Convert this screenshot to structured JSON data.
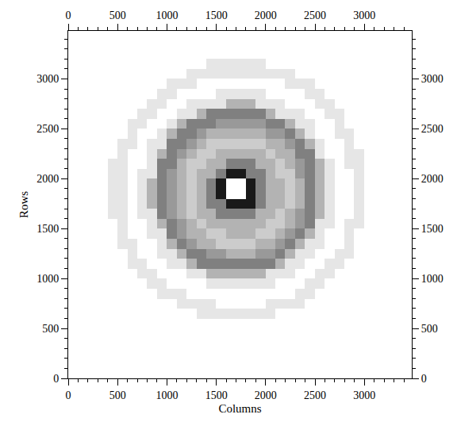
{
  "chart_data": {
    "type": "heatmap",
    "x_label": "Columns",
    "y_label": "Rows",
    "xlim": [
      0,
      3480
    ],
    "ylim": [
      0,
      3480
    ],
    "xticks": [
      0,
      500,
      1000,
      1500,
      2000,
      2500,
      3000
    ],
    "yticks": [
      0,
      500,
      1000,
      1500,
      2000,
      2500,
      3000
    ],
    "color": "#000000",
    "zlim": [
      0,
      10
    ],
    "x": [
      50,
      150,
      250,
      350,
      450,
      550,
      650,
      750,
      850,
      950,
      1050,
      1150,
      1250,
      1350,
      1450,
      1550,
      1650,
      1750,
      1850,
      1950,
      2050,
      2150,
      2250,
      2350,
      2450,
      2550,
      2650,
      2750,
      2850,
      2950,
      3050,
      3150,
      3250,
      3350,
      3450
    ],
    "y": [
      50,
      150,
      250,
      350,
      450,
      550,
      650,
      750,
      850,
      950,
      1050,
      1150,
      1250,
      1350,
      1450,
      1550,
      1650,
      1750,
      1850,
      1950,
      2050,
      2150,
      2250,
      2350,
      2450,
      2550,
      2650,
      2750,
      2850,
      2950,
      3050,
      3150,
      3250,
      3350,
      3450
    ],
    "z": [
      [
        0,
        0,
        0,
        0,
        0,
        0,
        0,
        0,
        0,
        0,
        0,
        0,
        0,
        0,
        0,
        0,
        0,
        0,
        0,
        0,
        0,
        0,
        0,
        0,
        0,
        0,
        0,
        0,
        0,
        0,
        0,
        0,
        0,
        0,
        0
      ],
      [
        0,
        0,
        0,
        0,
        0,
        0,
        0,
        0,
        0,
        0,
        0,
        0,
        0,
        0,
        0,
        0,
        0,
        0,
        0,
        0,
        0,
        0,
        0,
        0,
        0,
        0,
        0,
        0,
        0,
        0,
        0,
        0,
        0,
        0,
        0
      ],
      [
        0,
        0,
        0,
        0,
        0,
        0,
        0,
        0,
        0,
        0,
        0,
        0,
        0,
        0,
        0,
        0,
        0,
        0,
        0,
        0,
        0,
        0,
        0,
        0,
        0,
        0,
        0,
        0,
        0,
        0,
        0,
        0,
        0,
        0,
        0
      ],
      [
        0,
        0,
        0,
        0,
        0,
        0,
        0,
        0,
        0,
        0,
        0,
        0,
        0,
        0,
        0,
        0,
        0,
        0,
        0,
        0,
        0,
        0,
        0,
        0,
        0,
        0,
        0,
        0,
        0,
        0,
        0,
        0,
        0,
        0,
        0
      ],
      [
        0,
        0,
        0,
        0,
        0,
        0,
        0,
        0,
        0,
        0,
        0,
        0,
        0,
        0,
        0,
        0,
        0,
        0,
        0,
        0,
        0,
        0,
        0,
        0,
        0,
        0,
        0,
        0,
        0,
        0,
        0,
        0,
        0,
        0,
        0
      ],
      [
        0,
        0,
        0,
        0,
        0,
        0,
        0,
        0,
        0,
        0,
        0,
        0,
        0,
        0,
        0,
        0,
        0,
        0,
        0,
        0,
        0,
        0,
        0,
        0,
        0,
        0,
        0,
        0,
        0,
        0,
        0,
        0,
        0,
        0,
        0
      ],
      [
        0,
        0,
        0,
        0,
        0,
        0,
        0,
        0,
        0,
        0,
        0,
        0,
        0,
        1,
        1,
        1,
        1,
        1,
        1,
        1,
        1,
        0,
        0,
        0,
        0,
        0,
        0,
        0,
        0,
        0,
        0,
        0,
        0,
        0,
        0
      ],
      [
        0,
        0,
        0,
        0,
        0,
        0,
        0,
        0,
        0,
        0,
        0,
        1,
        1,
        1,
        1,
        0,
        0,
        0,
        0,
        0,
        1,
        1,
        1,
        1,
        0,
        0,
        0,
        0,
        0,
        0,
        0,
        0,
        0,
        0,
        0
      ],
      [
        0,
        0,
        0,
        0,
        0,
        0,
        0,
        0,
        0,
        1,
        1,
        1,
        0,
        0,
        0,
        0,
        0,
        0,
        0,
        0,
        0,
        0,
        0,
        1,
        1,
        0,
        0,
        0,
        0,
        0,
        0,
        0,
        0,
        0,
        0
      ],
      [
        0,
        0,
        0,
        0,
        0,
        0,
        0,
        0,
        1,
        1,
        0,
        0,
        0,
        0,
        1,
        1,
        1,
        1,
        1,
        1,
        1,
        0,
        0,
        0,
        1,
        1,
        0,
        0,
        0,
        0,
        0,
        0,
        0,
        0,
        0
      ],
      [
        0,
        0,
        0,
        0,
        0,
        0,
        0,
        1,
        1,
        0,
        0,
        0,
        1,
        1,
        3,
        3,
        3,
        3,
        3,
        3,
        1,
        1,
        1,
        0,
        0,
        1,
        1,
        0,
        0,
        0,
        0,
        0,
        0,
        0,
        0
      ],
      [
        0,
        0,
        0,
        0,
        0,
        0,
        1,
        1,
        0,
        0,
        1,
        1,
        3,
        5,
        5,
        5,
        5,
        5,
        5,
        5,
        5,
        3,
        1,
        1,
        0,
        0,
        1,
        1,
        0,
        0,
        0,
        0,
        0,
        0,
        0
      ],
      [
        0,
        0,
        0,
        0,
        0,
        0,
        1,
        0,
        0,
        1,
        1,
        3,
        5,
        5,
        4,
        4,
        3,
        3,
        3,
        4,
        4,
        5,
        3,
        1,
        1,
        0,
        0,
        1,
        1,
        0,
        0,
        0,
        0,
        0,
        0
      ],
      [
        0,
        0,
        0,
        0,
        0,
        1,
        1,
        0,
        0,
        1,
        3,
        5,
        4,
        3,
        3,
        2,
        2,
        2,
        2,
        3,
        3,
        4,
        5,
        3,
        1,
        1,
        0,
        0,
        1,
        0,
        0,
        0,
        0,
        0,
        0
      ],
      [
        0,
        0,
        0,
        0,
        0,
        1,
        0,
        0,
        1,
        1,
        5,
        4,
        3,
        3,
        2,
        2,
        3,
        3,
        3,
        2,
        2,
        3,
        4,
        5,
        3,
        1,
        0,
        0,
        1,
        0,
        0,
        0,
        0,
        0,
        0
      ],
      [
        0,
        0,
        0,
        0,
        0,
        1,
        0,
        0,
        1,
        3,
        5,
        4,
        3,
        2,
        3,
        3,
        3,
        3,
        3,
        3,
        2,
        2,
        3,
        4,
        5,
        1,
        1,
        0,
        1,
        1,
        0,
        0,
        0,
        0,
        0
      ],
      [
        0,
        0,
        0,
        0,
        1,
        1,
        0,
        1,
        1,
        5,
        4,
        3,
        2,
        3,
        3,
        5,
        5,
        5,
        5,
        3,
        3,
        2,
        3,
        4,
        5,
        3,
        1,
        0,
        0,
        1,
        0,
        0,
        0,
        0,
        0
      ],
      [
        0,
        0,
        0,
        0,
        1,
        1,
        0,
        1,
        3,
        5,
        4,
        3,
        2,
        3,
        5,
        5,
        9,
        9,
        9,
        5,
        3,
        3,
        2,
        3,
        5,
        3,
        1,
        0,
        0,
        1,
        0,
        0,
        0,
        0,
        0
      ],
      [
        0,
        0,
        0,
        0,
        1,
        1,
        0,
        1,
        3,
        5,
        4,
        3,
        2,
        3,
        5,
        9,
        null,
        null,
        9,
        5,
        3,
        3,
        2,
        3,
        5,
        3,
        1,
        0,
        0,
        1,
        0,
        0,
        0,
        0,
        0
      ],
      [
        0,
        0,
        0,
        0,
        1,
        1,
        0,
        1,
        3,
        5,
        4,
        3,
        2,
        3,
        5,
        9,
        null,
        null,
        9,
        5,
        3,
        3,
        2,
        3,
        5,
        3,
        1,
        0,
        0,
        1,
        0,
        0,
        0,
        0,
        0
      ],
      [
        0,
        0,
        0,
        0,
        1,
        1,
        0,
        1,
        1,
        5,
        4,
        3,
        2,
        3,
        3,
        5,
        9,
        9,
        5,
        5,
        3,
        2,
        2,
        4,
        5,
        3,
        1,
        0,
        0,
        1,
        0,
        0,
        0,
        0,
        0
      ],
      [
        0,
        0,
        0,
        0,
        1,
        1,
        0,
        0,
        1,
        5,
        5,
        3,
        2,
        2,
        3,
        3,
        5,
        5,
        5,
        3,
        3,
        2,
        3,
        4,
        5,
        3,
        1,
        0,
        1,
        1,
        0,
        0,
        0,
        0,
        0
      ],
      [
        0,
        0,
        0,
        0,
        0,
        1,
        0,
        0,
        1,
        3,
        5,
        4,
        3,
        2,
        2,
        3,
        3,
        3,
        3,
        3,
        2,
        3,
        3,
        5,
        5,
        1,
        0,
        0,
        1,
        1,
        0,
        0,
        0,
        0,
        0
      ],
      [
        0,
        0,
        0,
        0,
        0,
        1,
        1,
        0,
        1,
        1,
        5,
        5,
        4,
        3,
        2,
        2,
        2,
        2,
        2,
        2,
        3,
        3,
        4,
        5,
        3,
        1,
        0,
        0,
        1,
        0,
        0,
        0,
        0,
        0,
        0
      ],
      [
        0,
        0,
        0,
        0,
        0,
        0,
        1,
        0,
        0,
        1,
        3,
        5,
        5,
        4,
        3,
        3,
        3,
        3,
        3,
        3,
        4,
        4,
        5,
        3,
        1,
        0,
        0,
        1,
        1,
        0,
        0,
        0,
        0,
        0,
        0
      ],
      [
        0,
        0,
        0,
        0,
        0,
        0,
        1,
        1,
        0,
        0,
        1,
        3,
        5,
        5,
        5,
        4,
        4,
        4,
        4,
        4,
        5,
        5,
        3,
        1,
        1,
        0,
        0,
        1,
        0,
        0,
        0,
        0,
        0,
        0,
        0
      ],
      [
        0,
        0,
        0,
        0,
        0,
        0,
        0,
        1,
        1,
        0,
        0,
        1,
        1,
        3,
        5,
        5,
        5,
        5,
        5,
        5,
        3,
        1,
        1,
        1,
        0,
        0,
        1,
        1,
        0,
        0,
        0,
        0,
        0,
        0,
        0
      ],
      [
        0,
        0,
        0,
        0,
        0,
        0,
        0,
        0,
        1,
        1,
        0,
        0,
        1,
        1,
        1,
        1,
        3,
        3,
        3,
        1,
        1,
        1,
        0,
        0,
        0,
        1,
        1,
        0,
        0,
        0,
        0,
        0,
        0,
        0,
        0
      ],
      [
        0,
        0,
        0,
        0,
        0,
        0,
        0,
        0,
        0,
        1,
        1,
        0,
        0,
        0,
        0,
        1,
        1,
        1,
        1,
        1,
        0,
        0,
        0,
        0,
        1,
        1,
        0,
        0,
        0,
        0,
        0,
        0,
        0,
        0,
        0
      ],
      [
        0,
        0,
        0,
        0,
        0,
        0,
        0,
        0,
        0,
        0,
        1,
        1,
        1,
        0,
        0,
        0,
        0,
        0,
        0,
        0,
        0,
        0,
        1,
        1,
        1,
        0,
        0,
        0,
        0,
        0,
        0,
        0,
        0,
        0,
        0
      ],
      [
        0,
        0,
        0,
        0,
        0,
        0,
        0,
        0,
        0,
        0,
        0,
        0,
        1,
        1,
        1,
        1,
        1,
        1,
        1,
        1,
        1,
        1,
        1,
        0,
        0,
        0,
        0,
        0,
        0,
        0,
        0,
        0,
        0,
        0,
        0
      ],
      [
        0,
        0,
        0,
        0,
        0,
        0,
        0,
        0,
        0,
        0,
        0,
        0,
        0,
        0,
        1,
        1,
        1,
        1,
        1,
        1,
        0,
        0,
        0,
        0,
        0,
        0,
        0,
        0,
        0,
        0,
        0,
        0,
        0,
        0,
        0
      ],
      [
        0,
        0,
        0,
        0,
        0,
        0,
        0,
        0,
        0,
        0,
        0,
        0,
        0,
        0,
        0,
        0,
        0,
        0,
        0,
        0,
        0,
        0,
        0,
        0,
        0,
        0,
        0,
        0,
        0,
        0,
        0,
        0,
        0,
        0,
        0
      ],
      [
        0,
        0,
        0,
        0,
        0,
        0,
        0,
        0,
        0,
        0,
        0,
        0,
        0,
        0,
        0,
        0,
        0,
        0,
        0,
        0,
        0,
        0,
        0,
        0,
        0,
        0,
        0,
        0,
        0,
        0,
        0,
        0,
        0,
        0,
        0
      ],
      [
        0,
        0,
        0,
        0,
        0,
        0,
        0,
        0,
        0,
        0,
        0,
        0,
        0,
        0,
        0,
        0,
        0,
        0,
        0,
        0,
        0,
        0,
        0,
        0,
        0,
        0,
        0,
        0,
        0,
        0,
        0,
        0,
        0,
        0,
        0
      ]
    ]
  }
}
